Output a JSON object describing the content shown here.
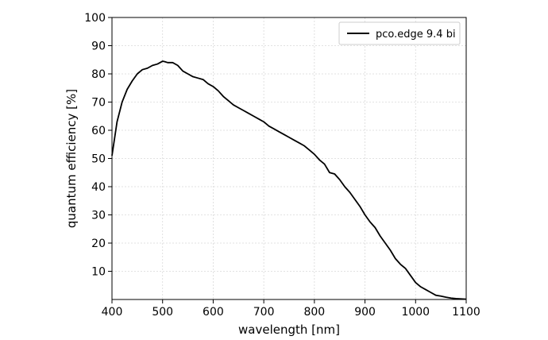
{
  "chart_data": {
    "type": "line",
    "xlabel": "wavelength [nm]",
    "ylabel": "quantum efficiency [%]",
    "xlim": [
      400,
      1100
    ],
    "ylim": [
      0,
      100
    ],
    "xticks": [
      400,
      500,
      600,
      700,
      800,
      900,
      1000,
      1100
    ],
    "yticks": [
      10,
      20,
      30,
      40,
      50,
      60,
      70,
      80,
      90,
      100
    ],
    "grid": true,
    "legend_position": "top-right",
    "series": [
      {
        "name": "pco.edge 9.4 bi",
        "color": "#000000",
        "x": [
          400,
          405,
          410,
          420,
          430,
          440,
          450,
          460,
          470,
          480,
          490,
          500,
          505,
          510,
          520,
          530,
          540,
          550,
          560,
          570,
          580,
          590,
          600,
          610,
          620,
          630,
          640,
          650,
          660,
          670,
          680,
          690,
          700,
          710,
          720,
          730,
          740,
          750,
          760,
          770,
          780,
          790,
          800,
          810,
          820,
          830,
          840,
          850,
          860,
          870,
          880,
          890,
          900,
          910,
          920,
          930,
          940,
          950,
          960,
          970,
          980,
          990,
          1000,
          1010,
          1020,
          1030,
          1040,
          1050,
          1060,
          1070,
          1080,
          1090,
          1100
        ],
        "y": [
          51,
          57,
          63,
          70,
          74.5,
          77.5,
          80,
          81.5,
          82,
          83,
          83.5,
          84.5,
          84.3,
          84,
          84,
          83,
          81,
          80,
          79,
          78.5,
          78,
          76.5,
          75.5,
          74,
          72,
          70.5,
          69,
          68,
          67,
          66,
          65,
          64,
          63,
          61.5,
          60.5,
          59.5,
          58.5,
          57.5,
          56.5,
          55.5,
          54.5,
          53,
          51.5,
          49.5,
          48,
          45,
          44.5,
          42.5,
          40,
          38,
          35.5,
          33,
          30,
          27.5,
          25.5,
          22.5,
          20,
          17.5,
          14.5,
          12.5,
          11,
          8.5,
          6,
          4.5,
          3.5,
          2.5,
          1.5,
          1.2,
          0.8,
          0.5,
          0.3,
          0.2,
          0.1
        ]
      }
    ]
  }
}
